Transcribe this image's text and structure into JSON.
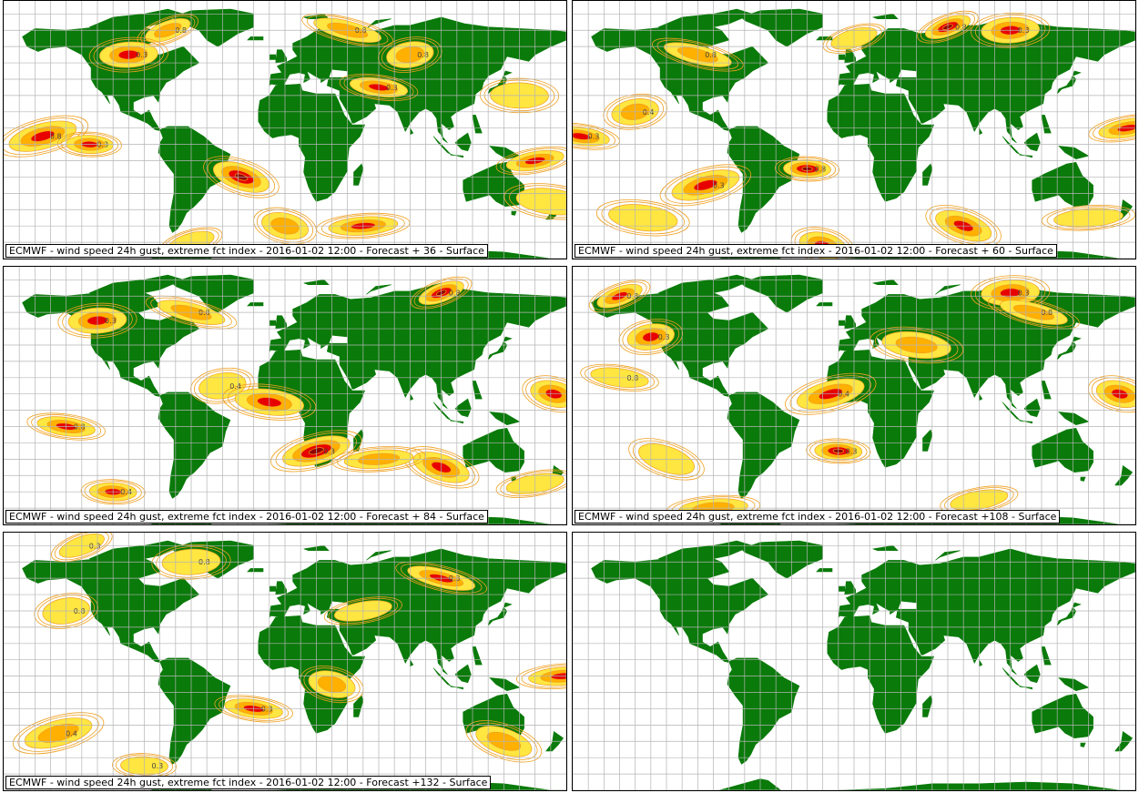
{
  "colors": {
    "land": "#0a7a0a",
    "grid": "#b4b4b4",
    "contour": "#f0a020",
    "fill_low": "#ffe640",
    "fill_mid": "#ffb000",
    "fill_high": "#e80000",
    "fill_max": "#900000"
  },
  "panels": [
    {
      "caption": "ECMWF - wind speed 24h gust, extreme fct index - 2016-01-02 12:00 - Forecast + 36 - Surface",
      "contour_labels": [
        "0.8",
        "0.3",
        "0.8",
        "0.8",
        "0.3",
        "0.8",
        "0.3"
      ],
      "hotspots": [
        {
          "lon": -75,
          "lat": 70,
          "level": "mid"
        },
        {
          "lon": -100,
          "lat": 55,
          "level": "high"
        },
        {
          "lon": 40,
          "lat": 70,
          "level": "mid"
        },
        {
          "lon": 80,
          "lat": 55,
          "level": "mid"
        },
        {
          "lon": 60,
          "lat": 35,
          "level": "high"
        },
        {
          "lon": -155,
          "lat": 5,
          "level": "high"
        },
        {
          "lon": -125,
          "lat": 0,
          "level": "high"
        },
        {
          "lon": -28,
          "lat": -20,
          "level": "max"
        },
        {
          "lon": 50,
          "lat": -50,
          "level": "high"
        },
        {
          "lon": 0,
          "lat": -50,
          "level": "mid"
        },
        {
          "lon": 160,
          "lat": -10,
          "level": "high"
        },
        {
          "lon": 170,
          "lat": -35,
          "level": "low"
        },
        {
          "lon": -60,
          "lat": -60,
          "level": "low"
        },
        {
          "lon": 150,
          "lat": 30,
          "level": "low"
        }
      ]
    },
    {
      "caption": "ECMWF - wind speed 24h gust, extreme fct index - 2016-01-02 12:00 - Forecast + 60 - Surface",
      "contour_labels": [
        "0.8",
        "0.3",
        "0.8",
        "0.4",
        "0.3",
        "0.3",
        "0.8"
      ],
      "hotspots": [
        {
          "lon": 60,
          "lat": 72,
          "level": "max"
        },
        {
          "lon": 100,
          "lat": 70,
          "level": "high"
        },
        {
          "lon": -100,
          "lat": 55,
          "level": "mid"
        },
        {
          "lon": -140,
          "lat": 20,
          "level": "mid"
        },
        {
          "lon": -175,
          "lat": 5,
          "level": "high"
        },
        {
          "lon": -95,
          "lat": -25,
          "level": "high"
        },
        {
          "lon": -30,
          "lat": -15,
          "level": "max"
        },
        {
          "lon": 70,
          "lat": -50,
          "level": "high"
        },
        {
          "lon": 150,
          "lat": -45,
          "level": "low"
        },
        {
          "lon": -20,
          "lat": -62,
          "level": "high"
        },
        {
          "lon": 175,
          "lat": 10,
          "level": "high"
        },
        {
          "lon": -135,
          "lat": -45,
          "level": "low"
        },
        {
          "lon": 0,
          "lat": 65,
          "level": "low"
        }
      ]
    },
    {
      "caption": "ECMWF - wind speed 24h gust, extreme fct index - 2016-01-02 12:00 - Forecast + 84 - Surface",
      "contour_labels": [
        "0.8",
        "0.3",
        "0.8",
        "0.4",
        "0.8",
        "0.3",
        "0.4"
      ],
      "hotspots": [
        {
          "lon": 100,
          "lat": 72,
          "level": "max"
        },
        {
          "lon": -120,
          "lat": 55,
          "level": "high"
        },
        {
          "lon": -60,
          "lat": 60,
          "level": "mid"
        },
        {
          "lon": -40,
          "lat": 15,
          "level": "low"
        },
        {
          "lon": -140,
          "lat": -10,
          "level": "high"
        },
        {
          "lon": 20,
          "lat": -25,
          "level": "max"
        },
        {
          "lon": -110,
          "lat": -50,
          "level": "high"
        },
        {
          "lon": 100,
          "lat": -35,
          "level": "high"
        },
        {
          "lon": 60,
          "lat": -30,
          "level": "mid"
        },
        {
          "lon": 172,
          "lat": 10,
          "level": "high"
        },
        {
          "lon": 160,
          "lat": -45,
          "level": "low"
        },
        {
          "lon": -10,
          "lat": 5,
          "level": "high"
        }
      ]
    },
    {
      "caption": "ECMWF - wind speed 24h gust, extreme fct index - 2016-01-02 12:00 - Forecast +108 - Surface",
      "contour_labels": [
        "0.8",
        "0.3",
        "0.8",
        "0.3",
        "0.8",
        "0.4",
        "0.3"
      ],
      "hotspots": [
        {
          "lon": -150,
          "lat": 70,
          "level": "high"
        },
        {
          "lon": 100,
          "lat": 72,
          "level": "high"
        },
        {
          "lon": 115,
          "lat": 60,
          "level": "mid"
        },
        {
          "lon": -130,
          "lat": 45,
          "level": "high"
        },
        {
          "lon": -150,
          "lat": 20,
          "level": "low"
        },
        {
          "lon": -15,
          "lat": 10,
          "level": "high"
        },
        {
          "lon": -10,
          "lat": -25,
          "level": "max"
        },
        {
          "lon": -120,
          "lat": -30,
          "level": "low"
        },
        {
          "lon": -90,
          "lat": -60,
          "level": "mid"
        },
        {
          "lon": 170,
          "lat": 10,
          "level": "high"
        },
        {
          "lon": 80,
          "lat": -55,
          "level": "low"
        },
        {
          "lon": 40,
          "lat": 40,
          "level": "mid"
        }
      ]
    },
    {
      "caption": "ECMWF - wind speed 24h gust, extreme fct index - 2016-01-02 12:00 - Forecast +132 - Surface",
      "contour_labels": [
        "0.3",
        "0.8",
        "0.3",
        "0.8",
        "0.3",
        "0.4",
        "0.3"
      ],
      "hotspots": [
        {
          "lon": -130,
          "lat": 80,
          "level": "low"
        },
        {
          "lon": -60,
          "lat": 70,
          "level": "low"
        },
        {
          "lon": 100,
          "lat": 60,
          "level": "high"
        },
        {
          "lon": -140,
          "lat": 40,
          "level": "low"
        },
        {
          "lon": -20,
          "lat": -20,
          "level": "high"
        },
        {
          "lon": -145,
          "lat": -35,
          "level": "mid"
        },
        {
          "lon": -90,
          "lat": -55,
          "level": "low"
        },
        {
          "lon": 140,
          "lat": -40,
          "level": "mid"
        },
        {
          "lon": 178,
          "lat": 0,
          "level": "high"
        },
        {
          "lon": 30,
          "lat": -5,
          "level": "mid"
        },
        {
          "lon": 50,
          "lat": 40,
          "level": "low"
        }
      ]
    },
    {
      "caption": "",
      "contour_labels": [],
      "hotspots": []
    }
  ]
}
